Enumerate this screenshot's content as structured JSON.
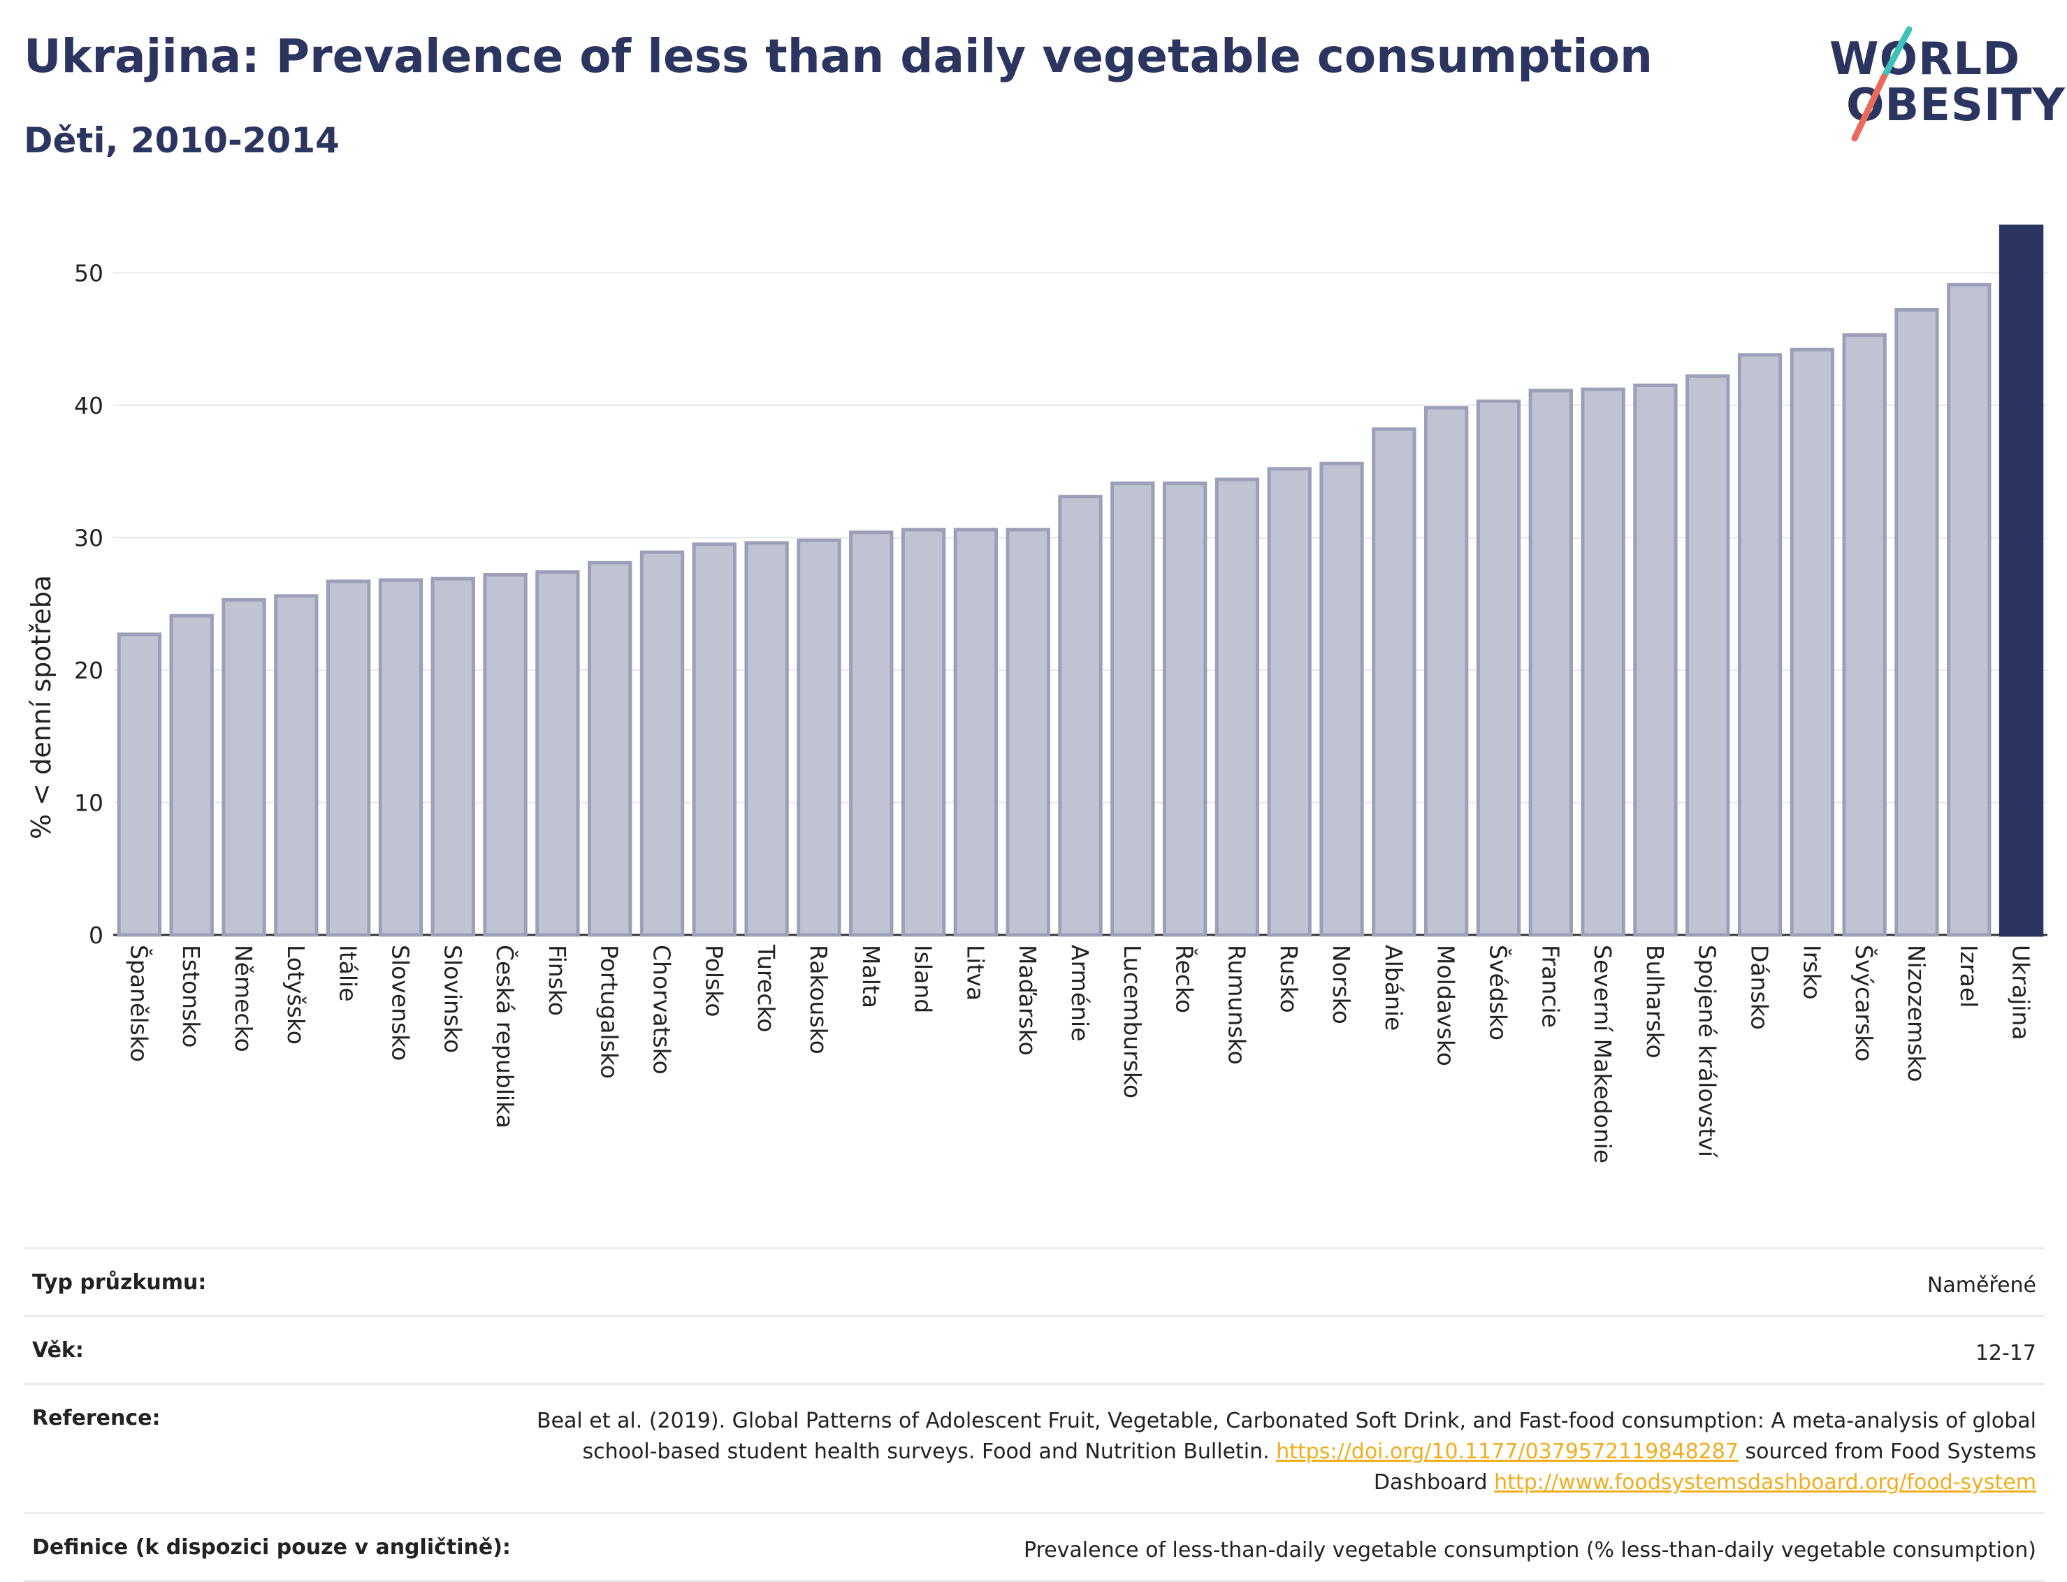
{
  "header": {
    "title": "Ukrajina: Prevalence of less than daily vegetable consumption",
    "subtitle": "Děti, 2010-2014"
  },
  "logo": {
    "line1": "WORLD",
    "line2": "OBESITY"
  },
  "colors": {
    "bar": "#c0c4d2",
    "bar_border": "#9ba0b8",
    "highlight": "#2b3560"
  },
  "chart_data": {
    "type": "bar",
    "title": "Ukrajina: Prevalence of less than daily vegetable consumption",
    "subtitle": "Děti, 2010-2014",
    "ylabel": "% < denní spotřeba",
    "ylim": [
      0,
      53.5
    ],
    "yticks": [
      0,
      10,
      20,
      30,
      40,
      50
    ],
    "grid": true,
    "categories": [
      "Španělsko",
      "Estonsko",
      "Německo",
      "Lotyšsko",
      "Itálie",
      "Slovensko",
      "Slovinsko",
      "Česká republika",
      "Finsko",
      "Portugalsko",
      "Chorvatsko",
      "Polsko",
      "Turecko",
      "Rakousko",
      "Malta",
      "Island",
      "Litva",
      "Maďarsko",
      "Arménie",
      "Lucembursko",
      "Řecko",
      "Rumunsko",
      "Rusko",
      "Norsko",
      "Albánie",
      "Moldavsko",
      "Švédsko",
      "Francie",
      "Severní Makedonie",
      "Bulharsko",
      "Spojené království",
      "Dánsko",
      "Irsko",
      "Švýcarsko",
      "Nizozemsko",
      "Izrael",
      "Ukrajina"
    ],
    "values": [
      22.7,
      24.1,
      25.3,
      25.6,
      26.7,
      26.8,
      26.9,
      27.2,
      27.4,
      28.1,
      28.9,
      29.5,
      29.6,
      29.8,
      30.4,
      30.6,
      30.6,
      30.6,
      33.1,
      34.1,
      34.1,
      34.4,
      35.2,
      35.6,
      38.2,
      39.8,
      40.3,
      41.1,
      41.2,
      41.5,
      42.2,
      43.8,
      44.2,
      45.3,
      47.2,
      49.1,
      53.5
    ],
    "highlight": "Ukrajina"
  },
  "info": {
    "survey_label": "Typ průzkumu:",
    "survey_value": "Naměřené",
    "age_label": "Věk:",
    "age_value": "12-17",
    "reference_label": "Reference:",
    "reference_text1": "Beal et al. (2019). Global Patterns of Adolescent Fruit, Vegetable, Carbonated Soft Drink, and Fast-food consumption: A meta-analysis of global school-based student health surveys. Food and Nutrition Bulletin.",
    "reference_link1": "https://doi.org/10.1177/0379572119848287",
    "reference_text2": "sourced from Food Systems Dashboard",
    "reference_link2": "http://www.foodsystemsdashboard.org/food-system",
    "definition_label": "Definice (k dispozici pouze v angličtině):",
    "definition_value": "Prevalence of less-than-daily vegetable consumption (% less-than-daily vegetable consumption)"
  }
}
